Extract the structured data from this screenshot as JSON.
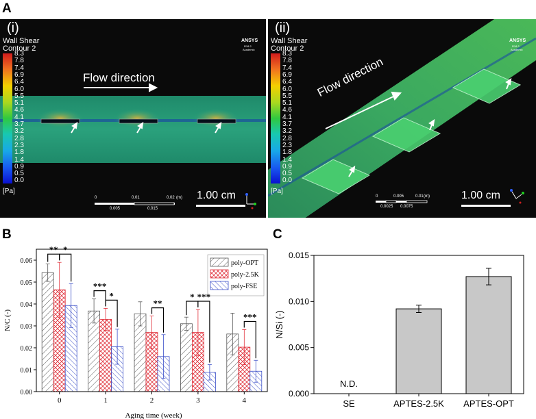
{
  "labels": {
    "panel_a": "A",
    "panel_b": "B",
    "panel_c": "C",
    "sub_i": "(i)",
    "sub_ii": "(ii)"
  },
  "sim": {
    "contour_title_1": "Wall Shear",
    "contour_title_2": "Contour 2",
    "colorbar_ticks": [
      "8.3",
      "7.8",
      "7.4",
      "6.9",
      "6.4",
      "6.0",
      "5.5",
      "5.1",
      "4.6",
      "4.1",
      "3.7",
      "3.2",
      "2.8",
      "2.3",
      "1.8",
      "1.4",
      "0.9",
      "0.5",
      "0.0"
    ],
    "colorbar_unit": "[Pa]",
    "brand": "ANSYS",
    "brand_sub": "R18.2",
    "brand_sub2": "Academic",
    "flow_label": "Flow direction",
    "scale_label": "1.00 cm",
    "ruler_i": {
      "top": [
        "0",
        "0.01",
        "0.02",
        "(m)"
      ],
      "bottom": [
        "0.005",
        "0.015"
      ]
    },
    "ruler_ii": {
      "top": [
        "0",
        "0.005",
        "0.01",
        "(m)"
      ],
      "bottom": [
        "0.0025",
        "0.0075"
      ]
    }
  },
  "chart_data": [
    {
      "type": "bar",
      "title": "",
      "xlabel": "Aging time (week)",
      "ylabel": "N/C (-)",
      "categories": [
        "0",
        "1",
        "2",
        "3",
        "4"
      ],
      "ylim": [
        0.0,
        0.065
      ],
      "yticks": [
        "0.00",
        "0.01",
        "0.02",
        "0.03",
        "0.04",
        "0.05",
        "0.06"
      ],
      "series": [
        {
          "name": "poly-OPT",
          "values": [
            0.0543,
            0.0368,
            0.0355,
            0.031,
            0.0263
          ],
          "errors": [
            0.004,
            0.0055,
            0.0055,
            0.003,
            0.0095
          ],
          "color": "#555555"
        },
        {
          "name": "poly-2.5K",
          "values": [
            0.0465,
            0.033,
            0.027,
            0.027,
            0.0203
          ],
          "errors": [
            0.0125,
            0.005,
            0.0075,
            0.0105,
            0.008
          ],
          "color": "#e0303a"
        },
        {
          "name": "poly-FSE",
          "values": [
            0.0393,
            0.0205,
            0.016,
            0.0088,
            0.0093
          ],
          "errors": [
            0.01,
            0.008,
            0.01,
            0.0035,
            0.005
          ],
          "color": "#3b4fc8"
        }
      ],
      "annotations": [
        {
          "group": 0,
          "pair": "OPT-2.5K",
          "text": "**"
        },
        {
          "group": 0,
          "pair": "2.5K-FSE",
          "text": "*"
        },
        {
          "group": 1,
          "pair": "OPT-2.5K",
          "text": "***"
        },
        {
          "group": 1,
          "pair": "2.5K-FSE",
          "text": "*"
        },
        {
          "group": 2,
          "pair": "2.5K-FSE",
          "text": "**"
        },
        {
          "group": 3,
          "pair": "OPT-2.5K",
          "text": "*"
        },
        {
          "group": 3,
          "pair": "2.5K-FSE",
          "text": "***"
        },
        {
          "group": 4,
          "pair": "2.5K-FSE",
          "text": "***"
        }
      ]
    },
    {
      "type": "bar",
      "title": "",
      "xlabel": "",
      "ylabel": "N/Si (-)",
      "categories": [
        "SE",
        "APTES-2.5K",
        "APTES-OPT"
      ],
      "values": [
        0,
        0.0092,
        0.0127
      ],
      "errors": [
        0,
        0.0004,
        0.0009
      ],
      "bar_labels": [
        "N.D.",
        "",
        ""
      ],
      "ylim": [
        0.0,
        0.015
      ],
      "yticks": [
        "0.000",
        "0.005",
        "0.010",
        "0.015"
      ],
      "color": "#c8c8c8"
    }
  ]
}
